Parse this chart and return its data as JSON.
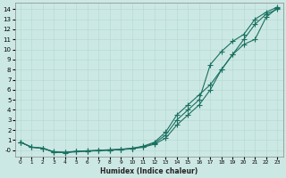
{
  "xlabel": "Humidex (Indice chaleur)",
  "bg_color": "#cce8e4",
  "grid_color": "#b0d8d0",
  "line_color": "#1a7060",
  "xlim": [
    -0.5,
    23.5
  ],
  "ylim": [
    -0.6,
    14.6
  ],
  "xticks": [
    0,
    1,
    2,
    3,
    4,
    5,
    6,
    7,
    8,
    9,
    10,
    11,
    12,
    13,
    14,
    15,
    16,
    17,
    18,
    19,
    20,
    21,
    22,
    23
  ],
  "yticks": [
    0,
    1,
    2,
    3,
    4,
    5,
    6,
    7,
    8,
    9,
    10,
    11,
    12,
    13,
    14
  ],
  "ytick_labels": [
    "-0",
    "1",
    "2",
    "3",
    "4",
    "5",
    "6",
    "7",
    "8",
    "9",
    "10",
    "11",
    "12",
    "13",
    "14"
  ],
  "curve1_x": [
    0,
    1,
    2,
    3,
    4,
    5,
    6,
    7,
    8,
    9,
    10,
    11,
    12,
    13,
    14,
    15,
    16,
    17,
    18,
    19,
    20,
    21,
    22,
    23
  ],
  "curve1_y": [
    0.8,
    0.3,
    0.2,
    -0.15,
    -0.2,
    -0.1,
    -0.05,
    0.0,
    0.05,
    0.1,
    0.2,
    0.4,
    0.8,
    1.8,
    3.5,
    4.5,
    5.5,
    6.5,
    8.0,
    9.5,
    11.0,
    12.5,
    13.5,
    14.0
  ],
  "curve2_x": [
    0,
    1,
    2,
    3,
    4,
    5,
    6,
    7,
    8,
    9,
    10,
    11,
    12,
    13,
    14,
    15,
    16,
    17,
    18,
    19,
    20,
    21,
    22,
    23
  ],
  "curve2_y": [
    0.8,
    0.3,
    0.2,
    -0.2,
    -0.25,
    -0.15,
    -0.1,
    -0.05,
    0.0,
    0.05,
    0.15,
    0.3,
    0.6,
    1.2,
    2.5,
    3.5,
    4.5,
    6.0,
    8.0,
    9.5,
    10.5,
    11.0,
    13.2,
    14.1
  ],
  "curve3_x": [
    0,
    1,
    2,
    3,
    4,
    5,
    6,
    7,
    8,
    9,
    10,
    11,
    12,
    13,
    14,
    15,
    16,
    17,
    18,
    19,
    20,
    21,
    22,
    23
  ],
  "curve3_y": [
    0.8,
    0.3,
    0.2,
    -0.18,
    -0.22,
    -0.12,
    -0.08,
    -0.03,
    0.02,
    0.08,
    0.18,
    0.35,
    0.7,
    1.5,
    3.0,
    4.0,
    5.0,
    8.5,
    9.8,
    10.8,
    11.5,
    13.0,
    13.7,
    14.2
  ],
  "marker": "+",
  "markersize": 4,
  "linewidth": 0.8
}
